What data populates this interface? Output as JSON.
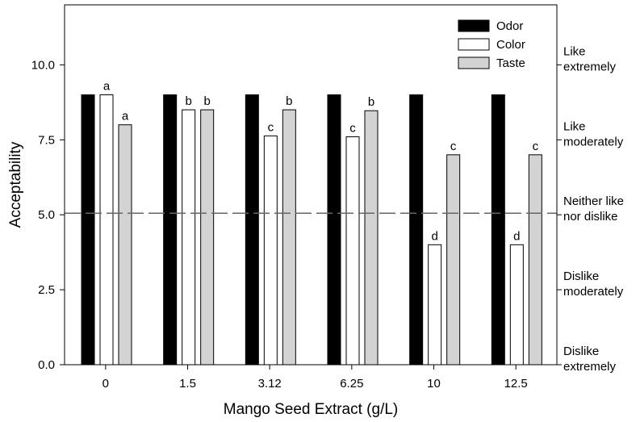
{
  "chart_data": {
    "type": "bar",
    "title": "",
    "xlabel": "Mango Seed Extract (g/L)",
    "ylabel": "Acceptability",
    "ylim": [
      0,
      12
    ],
    "yticks": [
      {
        "value": 0,
        "label": "0.0"
      },
      {
        "value": 2.5,
        "label": "2.5"
      },
      {
        "value": 5,
        "label": "5.0"
      },
      {
        "value": 7.5,
        "label": "7.5"
      },
      {
        "value": 10,
        "label": "10.0"
      }
    ],
    "categories": [
      "0",
      "1.5",
      "3.12",
      "6.25",
      "10",
      "12.5"
    ],
    "series": [
      {
        "name": "Odor",
        "color": "#000000",
        "values": [
          9,
          9,
          9,
          9,
          9,
          9
        ],
        "labels": [
          "",
          "",
          "",
          "",
          "",
          ""
        ]
      },
      {
        "name": "Color",
        "color": "#ffffff",
        "values": [
          9,
          8.5,
          7.63,
          7.6,
          4,
          4
        ],
        "labels": [
          "a",
          "b",
          "c",
          "c",
          "d",
          "d"
        ]
      },
      {
        "name": "Taste",
        "color": "#d3d3d3",
        "values": [
          8,
          8.5,
          8.5,
          8.47,
          7,
          7
        ],
        "labels": [
          "a",
          "b",
          "b",
          "b",
          "c",
          "c"
        ]
      }
    ],
    "reference_line": {
      "value": 5.05,
      "style": "dashed"
    },
    "legend": {
      "position": "top-right",
      "entries": [
        "Odor",
        "Color",
        "Taste"
      ]
    },
    "right_axis_labels": [
      {
        "value": 10,
        "lines": [
          "Like",
          "extremely"
        ]
      },
      {
        "value": 7.5,
        "lines": [
          "Like",
          "moderately"
        ]
      },
      {
        "value": 5,
        "lines": [
          "Neither like",
          "nor dislike"
        ]
      },
      {
        "value": 2.5,
        "lines": [
          "Dislike",
          "moderately"
        ]
      },
      {
        "value": 0,
        "lines": [
          "Dislike",
          "extremely"
        ]
      }
    ]
  }
}
